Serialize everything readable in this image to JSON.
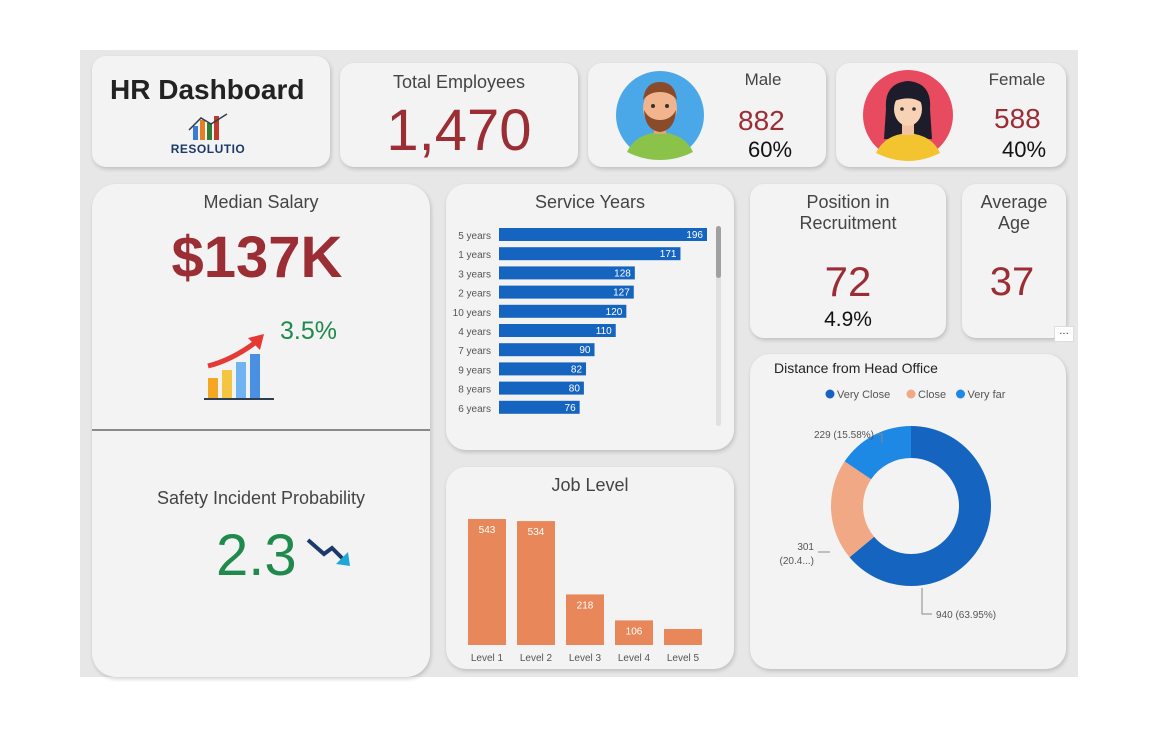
{
  "header": {
    "title": "HR Dashboard",
    "logo_text": "RESOLUTIO"
  },
  "total_employees": {
    "label": "Total Employees",
    "value": "1,470"
  },
  "male": {
    "label": "Male",
    "value": "882",
    "percent": "60%"
  },
  "female": {
    "label": "Female",
    "value": "588",
    "percent": "40%"
  },
  "median_salary": {
    "label": "Median Salary",
    "value": "$137K",
    "growth": "3.5%"
  },
  "safety": {
    "label": "Safety Incident Probability",
    "value": "2.3"
  },
  "recruitment": {
    "label_line1": "Position in",
    "label_line2": "Recruitment",
    "value": "72",
    "percent": "4.9%"
  },
  "average_age": {
    "label_line1": "Average",
    "label_line2": "Age",
    "value": "37",
    "more_label": "..."
  },
  "colors": {
    "accent_red": "#9b2d35",
    "bar_blue": "#1565c0",
    "bar_orange": "#e8875a",
    "green": "#1f8a4c",
    "donut_far": "#1e88e5",
    "donut_close": "#f0a885",
    "donut_veryclose": "#1565c0"
  },
  "service_years": {
    "title": "Service Years",
    "chart_data": {
      "type": "bar",
      "orientation": "horizontal",
      "categories": [
        "5 years",
        "1 years",
        "3 years",
        "2 years",
        "10 years",
        "4 years",
        "7 years",
        "9 years",
        "8 years",
        "6 years"
      ],
      "values": [
        196,
        171,
        128,
        127,
        120,
        110,
        90,
        82,
        80,
        76
      ],
      "xlim": [
        0,
        196
      ]
    }
  },
  "job_level": {
    "title": "Job Level",
    "chart_data": {
      "type": "bar",
      "categories": [
        "Level 1",
        "Level 2",
        "Level 3",
        "Level 4",
        "Level 5"
      ],
      "values": [
        543,
        534,
        218,
        106,
        69
      ],
      "labels": [
        "543",
        "534",
        "218",
        "106",
        ""
      ],
      "ylim": [
        0,
        543
      ]
    }
  },
  "distance": {
    "title": "Distance from Head Office",
    "chart_data": {
      "type": "pie",
      "legend": [
        "Very Close",
        "Close",
        "Very far"
      ],
      "slices": [
        {
          "name": "Very Close",
          "value": 940,
          "label": "940 (63.95%)"
        },
        {
          "name": "Close",
          "value": 301,
          "label_line1": "301",
          "label_line2": "(20.4...)"
        },
        {
          "name": "Very far",
          "value": 229,
          "label": "229 (15.58%)"
        }
      ]
    }
  }
}
